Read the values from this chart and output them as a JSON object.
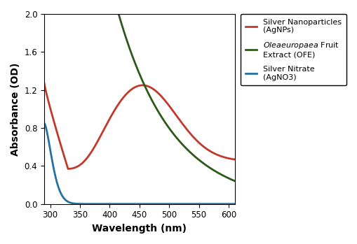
{
  "xlim": [
    290,
    610
  ],
  "ylim": [
    0,
    2.0
  ],
  "xticks": [
    300,
    350,
    400,
    450,
    500,
    550,
    600
  ],
  "yticks": [
    0,
    0.4,
    0.8,
    1.2,
    1.6,
    2.0
  ],
  "xlabel": "Wavelength (nm)",
  "ylabel": "Absorbance (OD)",
  "legend_entries": [
    "Silver Nanoparticles\n(AgNPs)",
    "$\\it{Olea europaea}$ Fruit\nExtract (OFE)",
    "Silver Nitrate\n(AgNO3)"
  ],
  "colors": {
    "agnps": "#c0392b",
    "ofe": "#2d5a1b",
    "agno3": "#2471a3"
  },
  "linewidth": 2.0
}
